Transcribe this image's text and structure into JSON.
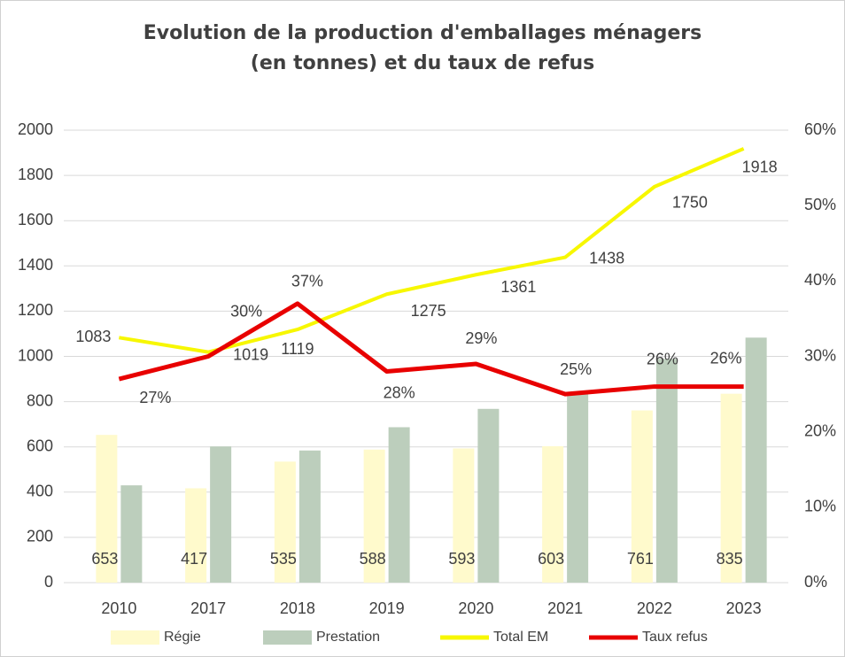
{
  "chart_data": {
    "type": "bar-line",
    "title": [
      "Evolution de la production d'emballages ménagers",
      "(en tonnes) et du taux de refus"
    ],
    "categories": [
      "2010",
      "2017",
      "2018",
      "2019",
      "2020",
      "2021",
      "2022",
      "2023"
    ],
    "series": [
      {
        "name": "Régie",
        "type": "bar",
        "color": "#fffacc",
        "values": [
          653,
          417,
          535,
          588,
          593,
          603,
          761,
          835
        ]
      },
      {
        "name": "Prestation",
        "type": "bar",
        "color": "#bccebc",
        "values": [
          430,
          602,
          584,
          687,
          768,
          835,
          989,
          1083
        ]
      },
      {
        "name": "Total EM",
        "type": "line",
        "color": "#f7f700",
        "values": [
          1083,
          1019,
          1119,
          1275,
          1361,
          1438,
          1750,
          1918
        ]
      },
      {
        "name": "Taux refus",
        "type": "line",
        "axis": "y2",
        "color": "#e80000",
        "values": [
          27,
          30,
          37,
          28,
          29,
          25,
          26,
          26
        ],
        "value_labels": [
          "27%",
          "30%",
          "37%",
          "28%",
          "29%",
          "25%",
          "26%",
          "26%"
        ]
      }
    ],
    "ylim": [
      0,
      2000
    ],
    "yticks": [
      0,
      200,
      400,
      600,
      800,
      1000,
      1200,
      1400,
      1600,
      1800,
      2000
    ],
    "y2lim": [
      0,
      60
    ],
    "y2ticks": [
      {
        "value": 0,
        "label": "0%"
      },
      {
        "value": 10,
        "label": "10%"
      },
      {
        "value": 20,
        "label": "20%"
      },
      {
        "value": 30,
        "label": "30%"
      },
      {
        "value": 40,
        "label": "40%"
      },
      {
        "value": 50,
        "label": "50%"
      },
      {
        "value": 60,
        "label": "60%"
      }
    ],
    "grid": true,
    "legend": "bottom"
  }
}
